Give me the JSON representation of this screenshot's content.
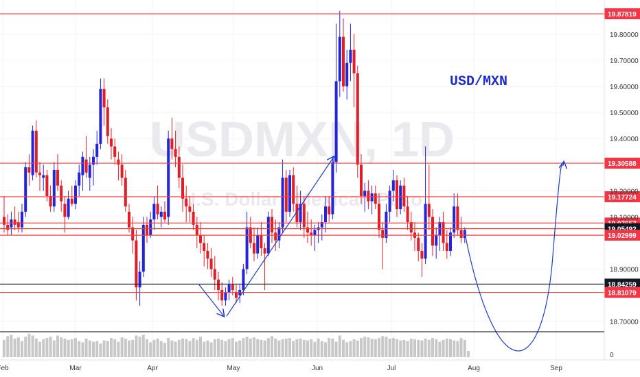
{
  "chart_data": {
    "type": "candlestick",
    "title": "USD/MXN",
    "watermark": {
      "symbol": "USDMXN, 1D",
      "subtitle": "U.S. Dollar / Mexican Peso"
    },
    "y_range": [
      18.66,
      19.91
    ],
    "y_ticks": [
      {
        "value": 19.8,
        "label": "19.80000"
      },
      {
        "value": 19.7,
        "label": "19.70000"
      },
      {
        "value": 19.6,
        "label": "19.60000"
      },
      {
        "value": 19.5,
        "label": "19.50000"
      },
      {
        "value": 19.4,
        "label": "19.40000"
      },
      {
        "value": 19.2,
        "label": "19.20000"
      },
      {
        "value": 19.1,
        "label": "19.10000"
      },
      {
        "value": 18.9,
        "label": "18.90000"
      },
      {
        "value": 18.7,
        "label": "18.70000"
      }
    ],
    "x_tick_labels": [
      "Feb",
      "Mar",
      "Apr",
      "May",
      "Jun",
      "Jul",
      "Aug",
      "Sep"
    ],
    "volume_axis_label": "0",
    "levels": [
      {
        "value": 19.87819,
        "label": "19.87819",
        "color": "#f23645",
        "line": "#ff3b3b"
      },
      {
        "value": 19.30588,
        "label": "19.30588",
        "color": "#f23645",
        "line": "#ff3b3b"
      },
      {
        "value": 19.17724,
        "label": "19.17724",
        "color": "#f23645",
        "line": "#ff3b3b"
      },
      {
        "value": 19.07657,
        "label": "19.07657",
        "color": "#f23645",
        "line": "#ff3b3b"
      },
      {
        "value": 19.05492,
        "label": "19.05492",
        "color": "#131722",
        "line": "#ff3b3b"
      },
      {
        "value": 19.02999,
        "label": "19.02999",
        "color": "#f23645",
        "line": "#ff3b3b"
      },
      {
        "value": 18.84259,
        "label": "18.84259",
        "color": "#131722",
        "line": "#131722"
      },
      {
        "value": 18.81079,
        "label": "18.81079",
        "color": "#f23645",
        "line": "#ff3b3b"
      }
    ],
    "colors": {
      "up": "#2424d8",
      "down": "#e01e28",
      "volume": "#c8c8c8",
      "annotation": "#1e3cc8"
    },
    "candles": [
      [
        19.1,
        19.18,
        19.04,
        19.07
      ],
      [
        19.07,
        19.11,
        19.03,
        19.05
      ],
      [
        19.06,
        19.12,
        19.03,
        19.09
      ],
      [
        19.09,
        19.14,
        19.05,
        19.07
      ],
      [
        19.08,
        19.12,
        19.04,
        19.06
      ],
      [
        19.06,
        19.15,
        19.04,
        19.12
      ],
      [
        19.12,
        19.31,
        19.1,
        19.29
      ],
      [
        19.29,
        19.34,
        19.22,
        19.27
      ],
      [
        19.26,
        19.45,
        19.24,
        19.43
      ],
      [
        19.43,
        19.47,
        19.25,
        19.27
      ],
      [
        19.27,
        19.31,
        19.2,
        19.26
      ],
      [
        19.25,
        19.3,
        19.2,
        19.26
      ],
      [
        19.26,
        19.28,
        19.16,
        19.18
      ],
      [
        19.18,
        19.22,
        19.12,
        19.14
      ],
      [
        19.14,
        19.31,
        19.12,
        19.28
      ],
      [
        19.28,
        19.34,
        19.2,
        19.22
      ],
      [
        19.22,
        19.24,
        19.12,
        19.16
      ],
      [
        19.15,
        19.18,
        19.04,
        19.1
      ],
      [
        19.1,
        19.2,
        19.09,
        19.17
      ],
      [
        19.17,
        19.22,
        19.14,
        19.15
      ],
      [
        19.15,
        19.24,
        19.13,
        19.22
      ],
      [
        19.22,
        19.3,
        19.18,
        19.27
      ],
      [
        19.26,
        19.35,
        19.2,
        19.33
      ],
      [
        19.32,
        19.41,
        19.25,
        19.27
      ],
      [
        19.25,
        19.33,
        19.2,
        19.3
      ],
      [
        19.3,
        19.36,
        19.22,
        19.33
      ],
      [
        19.33,
        19.43,
        19.3,
        19.38
      ],
      [
        19.38,
        19.63,
        19.36,
        19.59
      ],
      [
        19.59,
        19.63,
        19.45,
        19.52
      ],
      [
        19.52,
        19.55,
        19.38,
        19.41
      ],
      [
        19.4,
        19.44,
        19.32,
        19.37
      ],
      [
        19.37,
        19.4,
        19.3,
        19.33
      ],
      [
        19.32,
        19.35,
        19.24,
        19.3
      ],
      [
        19.3,
        19.34,
        19.22,
        19.25
      ],
      [
        19.25,
        19.28,
        19.12,
        19.14
      ],
      [
        19.12,
        19.15,
        19.04,
        19.06
      ],
      [
        19.06,
        19.1,
        18.96,
        19.01
      ],
      [
        19.01,
        19.05,
        18.78,
        18.83
      ],
      [
        18.83,
        18.93,
        18.76,
        18.89
      ],
      [
        18.89,
        19.1,
        18.87,
        19.07
      ],
      [
        19.07,
        19.1,
        19.0,
        19.03
      ],
      [
        19.03,
        19.12,
        19.02,
        19.09
      ],
      [
        19.09,
        19.18,
        19.05,
        19.15
      ],
      [
        19.15,
        19.22,
        19.09,
        19.11
      ],
      [
        19.1,
        19.14,
        19.06,
        19.12
      ],
      [
        19.12,
        19.16,
        19.08,
        19.09
      ],
      [
        19.1,
        19.43,
        19.07,
        19.4
      ],
      [
        19.4,
        19.48,
        19.32,
        19.36
      ],
      [
        19.36,
        19.43,
        19.29,
        19.33
      ],
      [
        19.33,
        19.37,
        19.21,
        19.25
      ],
      [
        19.25,
        19.3,
        19.12,
        19.17
      ],
      [
        19.17,
        19.22,
        19.08,
        19.14
      ],
      [
        19.14,
        19.18,
        19.08,
        19.12
      ],
      [
        19.12,
        19.15,
        19.05,
        19.07
      ],
      [
        19.07,
        19.1,
        18.98,
        19.03
      ],
      [
        19.03,
        19.08,
        18.96,
        19.0
      ],
      [
        19.0,
        19.03,
        18.91,
        18.97
      ],
      [
        18.97,
        19.0,
        18.9,
        18.94
      ],
      [
        18.94,
        18.98,
        18.87,
        18.9
      ],
      [
        18.9,
        18.95,
        18.82,
        18.86
      ],
      [
        18.86,
        18.89,
        18.78,
        18.82
      ],
      [
        18.82,
        18.85,
        18.76,
        18.78
      ],
      [
        18.78,
        18.83,
        18.76,
        18.81
      ],
      [
        18.81,
        18.86,
        18.78,
        18.84
      ],
      [
        18.84,
        18.87,
        18.8,
        18.82
      ],
      [
        18.81,
        18.84,
        18.77,
        18.79
      ],
      [
        18.8,
        18.84,
        18.77,
        18.82
      ],
      [
        18.82,
        18.92,
        18.8,
        18.9
      ],
      [
        18.9,
        19.12,
        18.88,
        19.06
      ],
      [
        19.06,
        19.1,
        18.98,
        19.0
      ],
      [
        19.0,
        19.06,
        18.93,
        18.96
      ],
      [
        18.96,
        19.06,
        18.94,
        19.03
      ],
      [
        19.03,
        19.08,
        18.95,
        18.98
      ],
      [
        18.98,
        19.0,
        18.82,
        18.96
      ],
      [
        18.96,
        19.12,
        18.95,
        19.1
      ],
      [
        19.1,
        19.13,
        19.0,
        19.04
      ],
      [
        19.04,
        19.09,
        18.97,
        19.01
      ],
      [
        19.01,
        19.08,
        18.98,
        19.06
      ],
      [
        19.06,
        19.32,
        19.04,
        19.25
      ],
      [
        19.25,
        19.28,
        19.08,
        19.12
      ],
      [
        19.12,
        19.28,
        19.1,
        19.26
      ],
      [
        19.26,
        19.29,
        19.12,
        19.15
      ],
      [
        19.15,
        19.22,
        19.06,
        19.08
      ],
      [
        19.08,
        19.2,
        19.05,
        19.15
      ],
      [
        19.15,
        19.18,
        19.02,
        19.06
      ],
      [
        19.06,
        19.12,
        19.0,
        19.04
      ],
      [
        19.04,
        19.09,
        18.99,
        19.03
      ],
      [
        19.03,
        19.07,
        18.97,
        19.05
      ],
      [
        19.05,
        19.08,
        19.0,
        19.06
      ],
      [
        19.06,
        19.11,
        19.01,
        19.08
      ],
      [
        19.08,
        19.18,
        19.04,
        19.14
      ],
      [
        19.14,
        19.18,
        19.08,
        19.11
      ],
      [
        19.11,
        19.33,
        19.09,
        19.31
      ],
      [
        19.31,
        19.84,
        19.27,
        19.62
      ],
      [
        19.62,
        19.89,
        19.56,
        19.79
      ],
      [
        19.79,
        19.86,
        19.58,
        19.6
      ],
      [
        19.6,
        19.74,
        19.55,
        19.69
      ],
      [
        19.69,
        19.84,
        19.62,
        19.74
      ],
      [
        19.74,
        19.8,
        19.52,
        19.65
      ],
      [
        19.65,
        19.68,
        19.25,
        19.3
      ],
      [
        19.3,
        19.34,
        19.15,
        19.18
      ],
      [
        19.18,
        19.23,
        19.12,
        19.2
      ],
      [
        19.2,
        19.24,
        19.13,
        19.16
      ],
      [
        19.16,
        19.22,
        19.11,
        19.19
      ],
      [
        19.19,
        19.22,
        19.13,
        19.15
      ],
      [
        19.15,
        19.19,
        19.02,
        19.05
      ],
      [
        19.05,
        19.08,
        18.9,
        19.02
      ],
      [
        19.02,
        19.15,
        19.0,
        19.12
      ],
      [
        19.12,
        19.22,
        19.08,
        19.2
      ],
      [
        19.2,
        19.28,
        19.16,
        19.24
      ],
      [
        19.24,
        19.26,
        19.1,
        19.13
      ],
      [
        19.13,
        19.24,
        19.11,
        19.22
      ],
      [
        19.22,
        19.25,
        19.12,
        19.14
      ],
      [
        19.14,
        19.18,
        19.05,
        19.08
      ],
      [
        19.08,
        19.12,
        19.01,
        19.04
      ],
      [
        19.04,
        19.08,
        18.97,
        19.02
      ],
      [
        19.02,
        19.04,
        18.93,
        18.97
      ],
      [
        18.97,
        19.0,
        18.87,
        18.94
      ],
      [
        18.94,
        19.37,
        18.92,
        19.15
      ],
      [
        19.15,
        19.3,
        19.05,
        19.1
      ],
      [
        19.1,
        19.13,
        18.95,
        18.99
      ],
      [
        18.99,
        19.06,
        18.94,
        19.03
      ],
      [
        19.03,
        19.1,
        18.97,
        19.08
      ],
      [
        19.08,
        19.12,
        18.97,
        19.0
      ],
      [
        19.0,
        19.05,
        18.94,
        18.97
      ],
      [
        18.97,
        19.06,
        18.95,
        19.04
      ],
      [
        19.04,
        19.19,
        19.02,
        19.14
      ],
      [
        19.14,
        19.19,
        19.03,
        19.05
      ],
      [
        19.05,
        19.1,
        19.0,
        19.02
      ],
      [
        19.02,
        19.06,
        19.0,
        19.05
      ]
    ],
    "volumes": [
      28,
      34,
      36,
      30,
      32,
      26,
      33,
      38,
      35,
      30,
      25,
      29,
      31,
      33,
      27,
      35,
      32,
      30,
      28,
      29,
      31,
      26,
      24,
      30,
      27,
      25,
      26,
      22,
      27,
      26,
      31,
      29,
      25,
      32,
      30,
      27,
      28,
      35,
      33,
      36,
      29,
      24,
      28,
      30,
      26,
      23,
      31,
      27,
      25,
      28,
      30,
      29,
      26,
      31,
      28,
      33,
      25,
      27,
      24,
      29,
      30,
      28,
      26,
      29,
      31,
      25,
      27,
      31,
      33,
      30,
      32,
      29,
      28,
      27,
      31,
      34,
      30,
      27,
      29,
      30,
      31,
      26,
      29,
      30,
      28,
      27,
      29,
      25,
      30,
      26,
      24,
      31,
      30,
      25,
      35,
      28,
      24,
      26,
      29,
      27,
      31,
      33,
      32,
      30,
      29,
      31,
      34,
      33,
      30,
      31,
      29,
      27,
      28,
      26,
      30,
      29,
      28,
      27,
      30,
      28,
      31,
      29,
      25,
      28,
      30,
      29,
      27,
      26,
      31,
      28,
      10
    ],
    "annotations": {
      "arrows": [
        {
          "name": "decline-arrow",
          "points": [
            [
              19.19,
              0
            ],
            [
              18.81,
              0
            ]
          ]
        },
        {
          "name": "rally-arrow",
          "points": [
            [
              18.74,
              0
            ],
            [
              19.33,
              0
            ]
          ]
        },
        {
          "name": "forecast-curve",
          "points": [
            [
              19.05,
              0
            ],
            [
              19.31,
              0
            ]
          ]
        }
      ]
    }
  }
}
